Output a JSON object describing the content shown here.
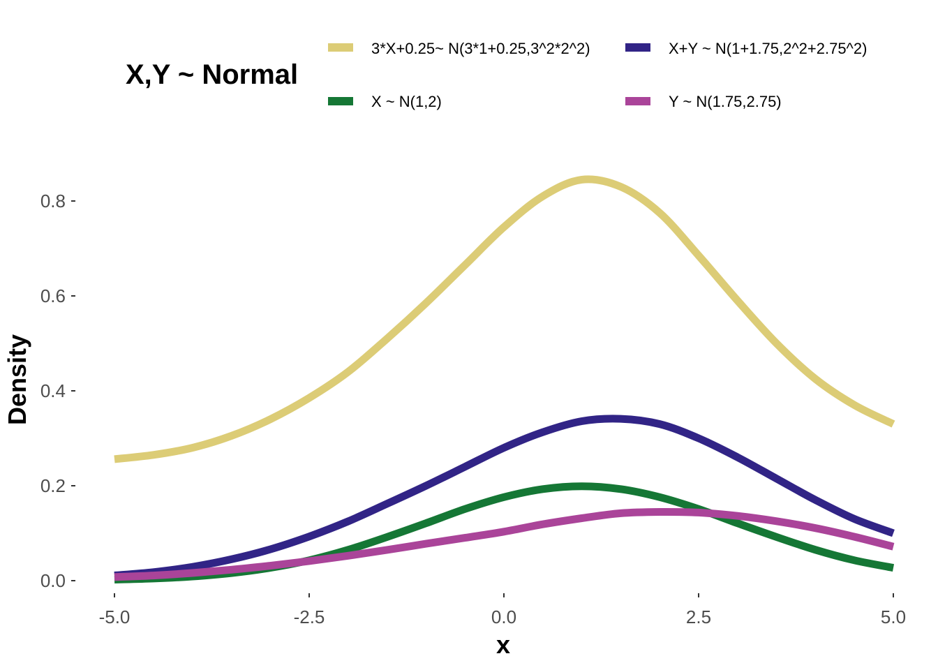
{
  "chart_data": {
    "type": "line",
    "title": "X,Y ~ Normal",
    "xlabel": "x",
    "ylabel": "Density",
    "xlim": [
      -5,
      5
    ],
    "ylim": [
      0,
      0.85
    ],
    "x_ticks": [
      "-5.0",
      "-2.5",
      "0.0",
      "2.5",
      "5.0"
    ],
    "x_tick_values": [
      -5,
      -2.5,
      0,
      2.5,
      5
    ],
    "y_ticks": [
      "0.0",
      "0.2",
      "0.4",
      "0.6",
      "0.8"
    ],
    "y_tick_values": [
      0,
      0.2,
      0.4,
      0.6,
      0.8
    ],
    "grid": false,
    "legend_position": "top",
    "series": [
      {
        "name": "3*X+0.25~ N(3*1+0.25,3^2*2^2)",
        "color": "#dccc76",
        "x": [
          -5,
          -4.5,
          -4,
          -3.5,
          -3,
          -2.5,
          -2,
          -1.5,
          -1,
          -0.5,
          0,
          0.5,
          1,
          1.5,
          2,
          2.5,
          3,
          3.5,
          4,
          4.5,
          5
        ],
        "y": [
          0.256,
          0.265,
          0.28,
          0.305,
          0.34,
          0.385,
          0.44,
          0.51,
          0.585,
          0.665,
          0.745,
          0.81,
          0.845,
          0.83,
          0.775,
          0.685,
          0.59,
          0.5,
          0.425,
          0.37,
          0.33
        ]
      },
      {
        "name": "X+Y ~ N(1+1.75,2^2+2.75^2)",
        "color": "#312486",
        "x": [
          -5,
          -4.5,
          -4,
          -3.5,
          -3,
          -2.5,
          -2,
          -1.5,
          -1,
          -0.5,
          0,
          0.5,
          1,
          1.5,
          2,
          2.5,
          3,
          3.5,
          4,
          4.5,
          5
        ],
        "y": [
          0.011,
          0.018,
          0.029,
          0.045,
          0.066,
          0.093,
          0.125,
          0.162,
          0.2,
          0.24,
          0.28,
          0.313,
          0.336,
          0.341,
          0.33,
          0.3,
          0.26,
          0.215,
          0.17,
          0.13,
          0.1
        ]
      },
      {
        "name": "X ~ N(1,2)",
        "color": "#157735",
        "x": [
          -5,
          -4.5,
          -4,
          -3.5,
          -3,
          -2.5,
          -2,
          -1.5,
          -1,
          -0.5,
          0,
          0.5,
          1,
          1.5,
          2,
          2.5,
          3,
          3.5,
          4,
          4.5,
          5
        ],
        "y": [
          0.0022,
          0.0045,
          0.0088,
          0.016,
          0.027,
          0.043,
          0.065,
          0.092,
          0.121,
          0.151,
          0.176,
          0.193,
          0.199,
          0.193,
          0.176,
          0.151,
          0.121,
          0.092,
          0.065,
          0.043,
          0.027
        ]
      },
      {
        "name": "Y ~ N(1.75,2.75)",
        "color": "#aa4499",
        "x": [
          -5,
          -4.5,
          -4,
          -3.5,
          -3,
          -2.5,
          -2,
          -1.5,
          -1,
          -0.5,
          0,
          0.5,
          1,
          1.5,
          2,
          2.5,
          3,
          3.5,
          4,
          4.5,
          5
        ],
        "y": [
          0.0075,
          0.0109,
          0.0162,
          0.0231,
          0.0315,
          0.0413,
          0.0525,
          0.0648,
          0.0778,
          0.0903,
          0.1032,
          0.1188,
          0.1316,
          0.1421,
          0.1448,
          0.1435,
          0.1364,
          0.1253,
          0.1108,
          0.0925,
          0.0716
        ]
      }
    ],
    "legend_order": [
      0,
      1,
      2,
      3
    ]
  }
}
